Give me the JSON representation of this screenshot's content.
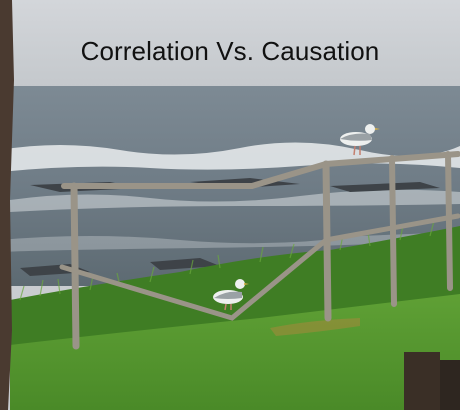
{
  "caption": "Correlation Vs. Causation",
  "palette": {
    "sky": "#cdd0d4",
    "sea": "#6f7c86",
    "surf": "#e6eaec",
    "grass_dark": "#4f8a2c",
    "grass_light": "#6fae3a",
    "railing": "#9a9488",
    "gull_body": "#eef0ef",
    "gull_wing": "#9aa1a5",
    "tree_trunk": "#4a3a30"
  },
  "subjects": {
    "gulls": [
      "seagull on top rail",
      "seagull on sagging lower rail"
    ]
  }
}
